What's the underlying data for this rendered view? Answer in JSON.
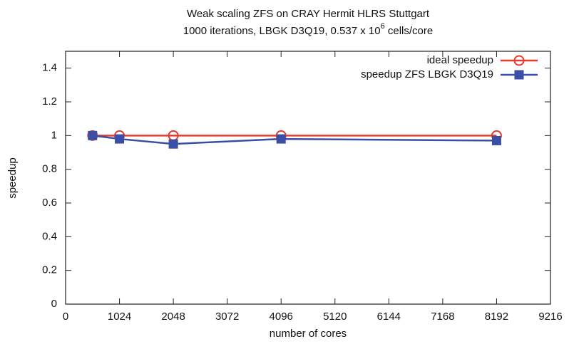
{
  "chart_data": {
    "type": "line",
    "title": "Weak scaling ZFS on CRAY Hermit HLRS Stuttgart",
    "subtitle": [
      "1000 iterations, LBGK D3Q19, 0.537 x 10",
      "6",
      " cells/core"
    ],
    "x_label": "number of cores",
    "y_label": "speedup",
    "x": [
      512,
      1024,
      2048,
      4096,
      8192
    ],
    "series": [
      {
        "name": "ideal speedup",
        "color": "#e8392e",
        "marker": "circle",
        "values": [
          1,
          1,
          1,
          1,
          1
        ]
      },
      {
        "name": "speedup ZFS LBGK D3Q19",
        "color": "#3a4ea6",
        "marker": "square",
        "values": [
          1,
          0.98,
          0.95,
          0.98,
          0.97
        ]
      }
    ],
    "xlim": [
      0,
      9216
    ],
    "xticks": [
      0,
      1024,
      2048,
      3072,
      4096,
      5120,
      6144,
      7168,
      8192,
      9216
    ],
    "ylim": [
      0,
      1.5
    ],
    "yticks": [
      0,
      0.2,
      0.4,
      0.6,
      0.8,
      1,
      1.2,
      1.4
    ],
    "grid": false,
    "legend": "top-right"
  }
}
